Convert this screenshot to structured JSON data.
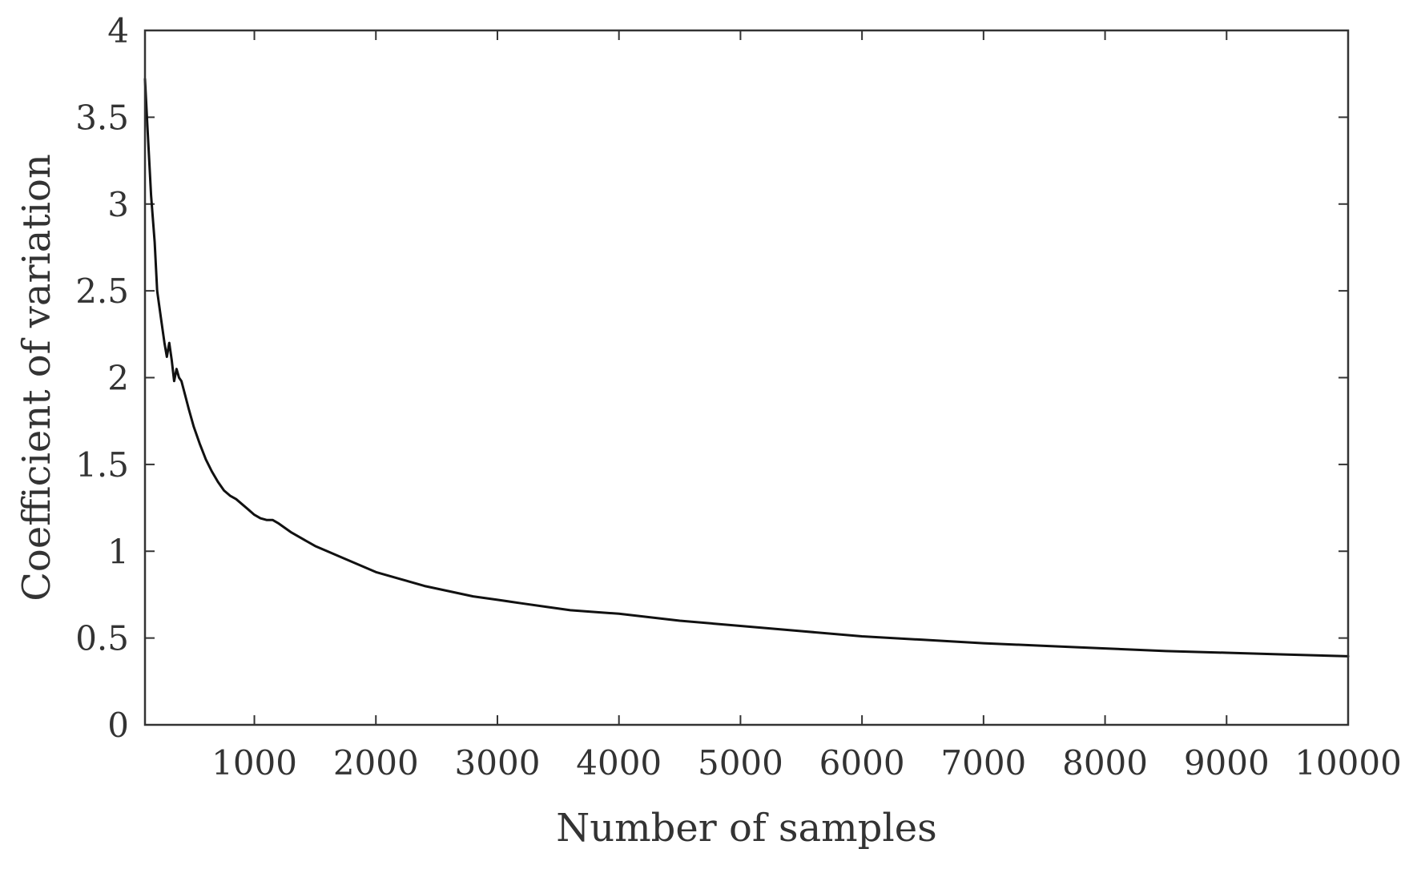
{
  "chart_data": {
    "type": "line",
    "title": "",
    "xlabel": "Number of samples",
    "ylabel": "Coefficient of variation",
    "xlim": [
      100,
      10000
    ],
    "ylim": [
      0,
      4
    ],
    "xticks": [
      1000,
      2000,
      3000,
      4000,
      5000,
      6000,
      7000,
      8000,
      9000,
      10000
    ],
    "xtick_labels": [
      "1000",
      "2000",
      "3000",
      "4000",
      "5000",
      "6000",
      "7000",
      "8000",
      "9000",
      "10000"
    ],
    "yticks": [
      0,
      0.5,
      1,
      1.5,
      2,
      2.5,
      3,
      3.5,
      4
    ],
    "ytick_labels": [
      "0",
      "0.5",
      "1",
      "1.5",
      "2",
      "2.5",
      "3",
      "3.5",
      "4"
    ],
    "grid": false,
    "line_color": "#111111",
    "series": [
      {
        "x": [
          100,
          120,
          150,
          180,
          200,
          230,
          260,
          280,
          300,
          320,
          340,
          360,
          380,
          400,
          430,
          460,
          500,
          550,
          600,
          650,
          700,
          750,
          800,
          850,
          900,
          950,
          1000,
          1050,
          1100,
          1150,
          1200,
          1300,
          1400,
          1500,
          1600,
          1700,
          1800,
          1900,
          2000,
          2200,
          2400,
          2600,
          2800,
          3000,
          3200,
          3400,
          3600,
          3800,
          4000,
          4500,
          5000,
          5500,
          6000,
          6500,
          7000,
          7500,
          8000,
          8500,
          9000,
          9500,
          10000
        ],
        "y": [
          3.72,
          3.45,
          3.05,
          2.78,
          2.5,
          2.35,
          2.2,
          2.12,
          2.2,
          2.1,
          1.98,
          2.05,
          2.0,
          1.98,
          1.9,
          1.82,
          1.72,
          1.62,
          1.53,
          1.46,
          1.4,
          1.35,
          1.32,
          1.3,
          1.27,
          1.24,
          1.21,
          1.19,
          1.18,
          1.18,
          1.16,
          1.11,
          1.07,
          1.03,
          1.0,
          0.97,
          0.94,
          0.91,
          0.88,
          0.84,
          0.8,
          0.77,
          0.74,
          0.72,
          0.7,
          0.68,
          0.66,
          0.65,
          0.64,
          0.6,
          0.57,
          0.54,
          0.51,
          0.49,
          0.47,
          0.455,
          0.44,
          0.425,
          0.415,
          0.405,
          0.395
        ]
      }
    ]
  }
}
